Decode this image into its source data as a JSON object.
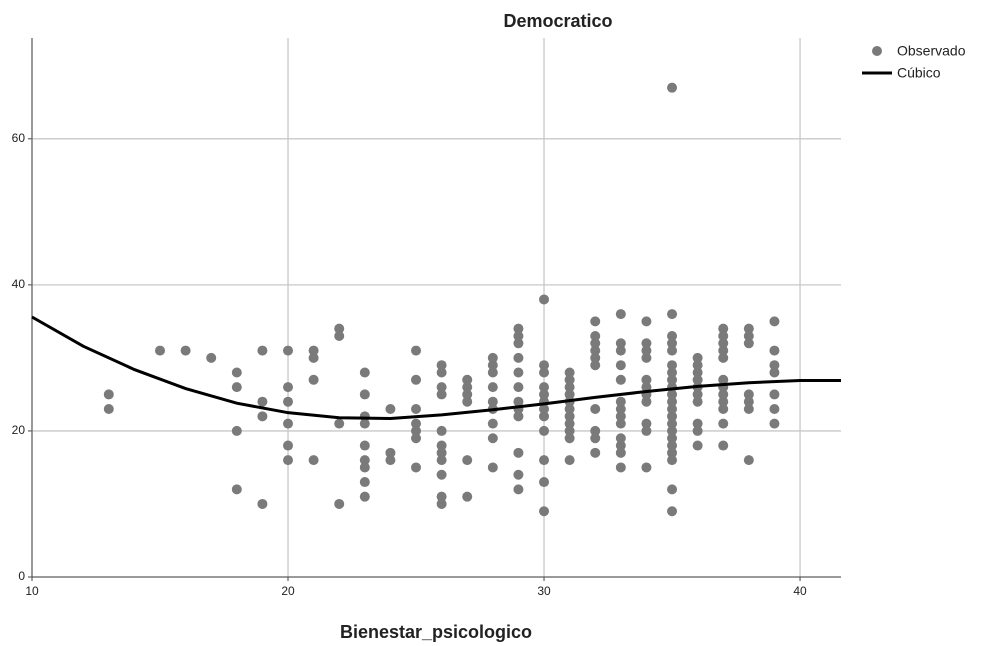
{
  "chart_data": {
    "type": "scatter",
    "title": "Democratico",
    "x_label": "Bienestar_psicologico",
    "xlim": [
      10,
      41.6
    ],
    "ylim": [
      0,
      73.8
    ],
    "xticks": [
      10,
      20,
      30,
      40
    ],
    "yticks": [
      0,
      20,
      40,
      60
    ],
    "grid": true,
    "legend": "right",
    "series": [
      {
        "name": "Observado",
        "type": "scatter",
        "color": "#7a7a7a",
        "x": [
          13,
          13,
          15,
          16,
          17,
          18,
          18,
          18,
          18,
          19,
          19,
          19,
          19,
          20,
          20,
          20,
          20,
          20,
          20,
          21,
          21,
          21,
          21,
          22,
          22,
          22,
          22,
          23,
          23,
          23,
          23,
          23,
          23,
          23,
          23,
          23,
          24,
          24,
          24,
          25,
          25,
          25,
          25,
          25,
          25,
          25,
          26,
          26,
          26,
          26,
          26,
          26,
          26,
          26,
          26,
          26,
          26,
          27,
          27,
          27,
          27,
          27,
          27,
          28,
          28,
          28,
          28,
          28,
          28,
          28,
          28,
          28,
          29,
          29,
          29,
          29,
          29,
          29,
          29,
          29,
          29,
          29,
          29,
          29,
          30,
          30,
          30,
          30,
          30,
          30,
          30,
          30,
          30,
          30,
          30,
          30,
          31,
          31,
          31,
          31,
          31,
          31,
          31,
          31,
          31,
          31,
          31,
          32,
          32,
          32,
          32,
          32,
          32,
          32,
          32,
          32,
          32,
          33,
          33,
          33,
          33,
          33,
          33,
          33,
          33,
          33,
          33,
          33,
          33,
          33,
          34,
          34,
          34,
          34,
          34,
          34,
          34,
          34,
          34,
          34,
          34,
          35,
          35,
          35,
          35,
          35,
          35,
          35,
          35,
          35,
          35,
          35,
          35,
          35,
          35,
          35,
          35,
          35,
          35,
          35,
          35,
          35,
          36,
          36,
          36,
          36,
          36,
          36,
          36,
          36,
          36,
          36,
          37,
          37,
          37,
          37,
          37,
          37,
          37,
          37,
          37,
          37,
          37,
          37,
          38,
          38,
          38,
          38,
          38,
          38,
          38,
          39,
          39,
          39,
          39,
          39,
          39,
          39
        ],
        "values": [
          25,
          23,
          31,
          31,
          30,
          28,
          26,
          20,
          12,
          31,
          24,
          22,
          10,
          31,
          26,
          24,
          21,
          18,
          16,
          31,
          30,
          27,
          16,
          34,
          33,
          21,
          10,
          28,
          25,
          22,
          21,
          18,
          16,
          15,
          13,
          11,
          23,
          17,
          16,
          31,
          27,
          23,
          21,
          20,
          19,
          15,
          29,
          28,
          26,
          25,
          20,
          18,
          17,
          16,
          14,
          11,
          10,
          27,
          26,
          25,
          24,
          16,
          11,
          30,
          29,
          28,
          26,
          24,
          23,
          21,
          19,
          15,
          34,
          33,
          32,
          30,
          28,
          26,
          24,
          23,
          22,
          17,
          14,
          12,
          38,
          29,
          28,
          26,
          25,
          24,
          23,
          22,
          20,
          16,
          13,
          9,
          28,
          27,
          26,
          25,
          24,
          23,
          22,
          21,
          20,
          19,
          16,
          35,
          33,
          32,
          31,
          30,
          29,
          23,
          20,
          19,
          17,
          36,
          32,
          31,
          29,
          27,
          24,
          23,
          22,
          21,
          19,
          18,
          17,
          15,
          35,
          32,
          31,
          30,
          27,
          26,
          25,
          24,
          21,
          20,
          15,
          67,
          36,
          33,
          32,
          31,
          29,
          28,
          27,
          26,
          25,
          24,
          23,
          22,
          21,
          20,
          19,
          18,
          17,
          16,
          12,
          9,
          30,
          29,
          28,
          27,
          26,
          25,
          24,
          21,
          20,
          18,
          34,
          33,
          32,
          31,
          30,
          27,
          26,
          25,
          24,
          23,
          21,
          18,
          34,
          33,
          32,
          25,
          24,
          23,
          16,
          35,
          31,
          29,
          28,
          25,
          23,
          21
        ]
      },
      {
        "name": "Cúbico",
        "type": "line",
        "color": "#000000",
        "x": [
          10,
          12,
          14,
          16,
          18,
          20,
          22,
          24,
          26,
          28,
          30,
          32,
          34,
          36,
          38,
          40,
          41.6
        ],
        "values": [
          35.6,
          31.6,
          28.4,
          25.8,
          23.8,
          22.5,
          21.8,
          21.7,
          22.2,
          22.9,
          23.7,
          24.6,
          25.4,
          26.1,
          26.6,
          26.9,
          26.9
        ]
      }
    ]
  }
}
